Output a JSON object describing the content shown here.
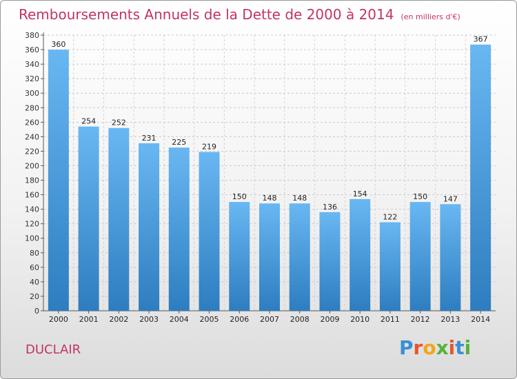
{
  "header": {
    "title": "Remboursements Annuels de la Dette de 2000 à 2014",
    "unit": "(en milliers d'€)"
  },
  "footer": {
    "town": "DUCLAIR",
    "logo": "Proxiti"
  },
  "colors": {
    "bar_light": "#69b7f2",
    "bar_dark": "#2d7dc0",
    "accent": "#c1355f"
  },
  "chart_data": {
    "type": "bar",
    "categories": [
      "2000",
      "2001",
      "2002",
      "2003",
      "2004",
      "2005",
      "2006",
      "2007",
      "2008",
      "2009",
      "2010",
      "2011",
      "2012",
      "2013",
      "2014"
    ],
    "values": [
      360,
      254,
      252,
      231,
      225,
      219,
      150,
      148,
      148,
      136,
      154,
      122,
      150,
      147,
      367
    ],
    "ylim": [
      0,
      380
    ],
    "ytick_step": 20,
    "grid": true,
    "data_labels": true
  }
}
